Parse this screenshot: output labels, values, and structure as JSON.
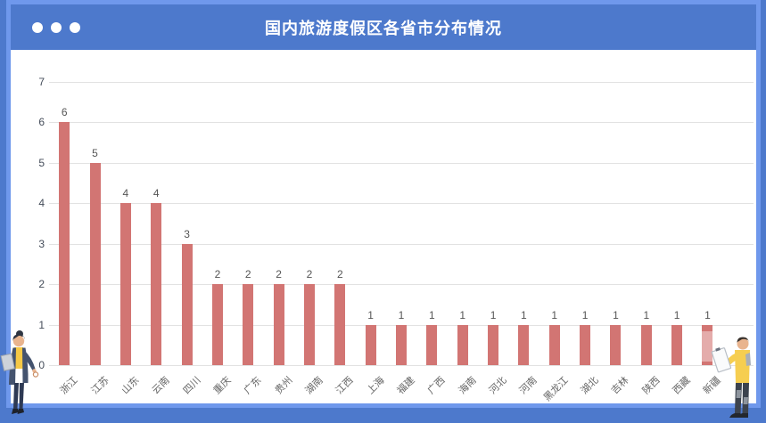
{
  "header": {
    "title": "国内旅游度假区各省市分布情况",
    "window_dots": 3
  },
  "chart_data": {
    "type": "bar",
    "title": "国内旅游度假区各省市分布情况",
    "categories": [
      "浙江",
      "江苏",
      "山东",
      "云南",
      "四川",
      "重庆",
      "广东",
      "贵州",
      "湖南",
      "江西",
      "上海",
      "福建",
      "广西",
      "海南",
      "河北",
      "河南",
      "黑龙江",
      "湖北",
      "吉林",
      "陕西",
      "西藏",
      "新疆"
    ],
    "values": [
      6,
      5,
      4,
      4,
      3,
      2,
      2,
      2,
      2,
      2,
      1,
      1,
      1,
      1,
      1,
      1,
      1,
      1,
      1,
      1,
      1,
      1
    ],
    "xlabel": "",
    "ylabel": "",
    "ylim": [
      0,
      7
    ],
    "yticks": [
      0,
      1,
      2,
      3,
      4,
      5,
      6,
      7
    ],
    "grid": true,
    "legend": "none",
    "value_labels": true,
    "x_label_rotation": 45
  },
  "colors": {
    "frame_blue": "#4D79CC",
    "frame_light_blue": "#6F98EC",
    "panel_bg": "#FFFFFF",
    "bar": "#D27573",
    "gridline": "#E2E2E2",
    "y_axis_label": "#444C59",
    "x_axis_label": "#666666",
    "value_label": "#555555",
    "title_text": "#FFFFFF"
  },
  "decorations": {
    "left_figure": "woman-holding-clipboard-illustration",
    "right_figure": "man-holding-clipboard-illustration"
  }
}
